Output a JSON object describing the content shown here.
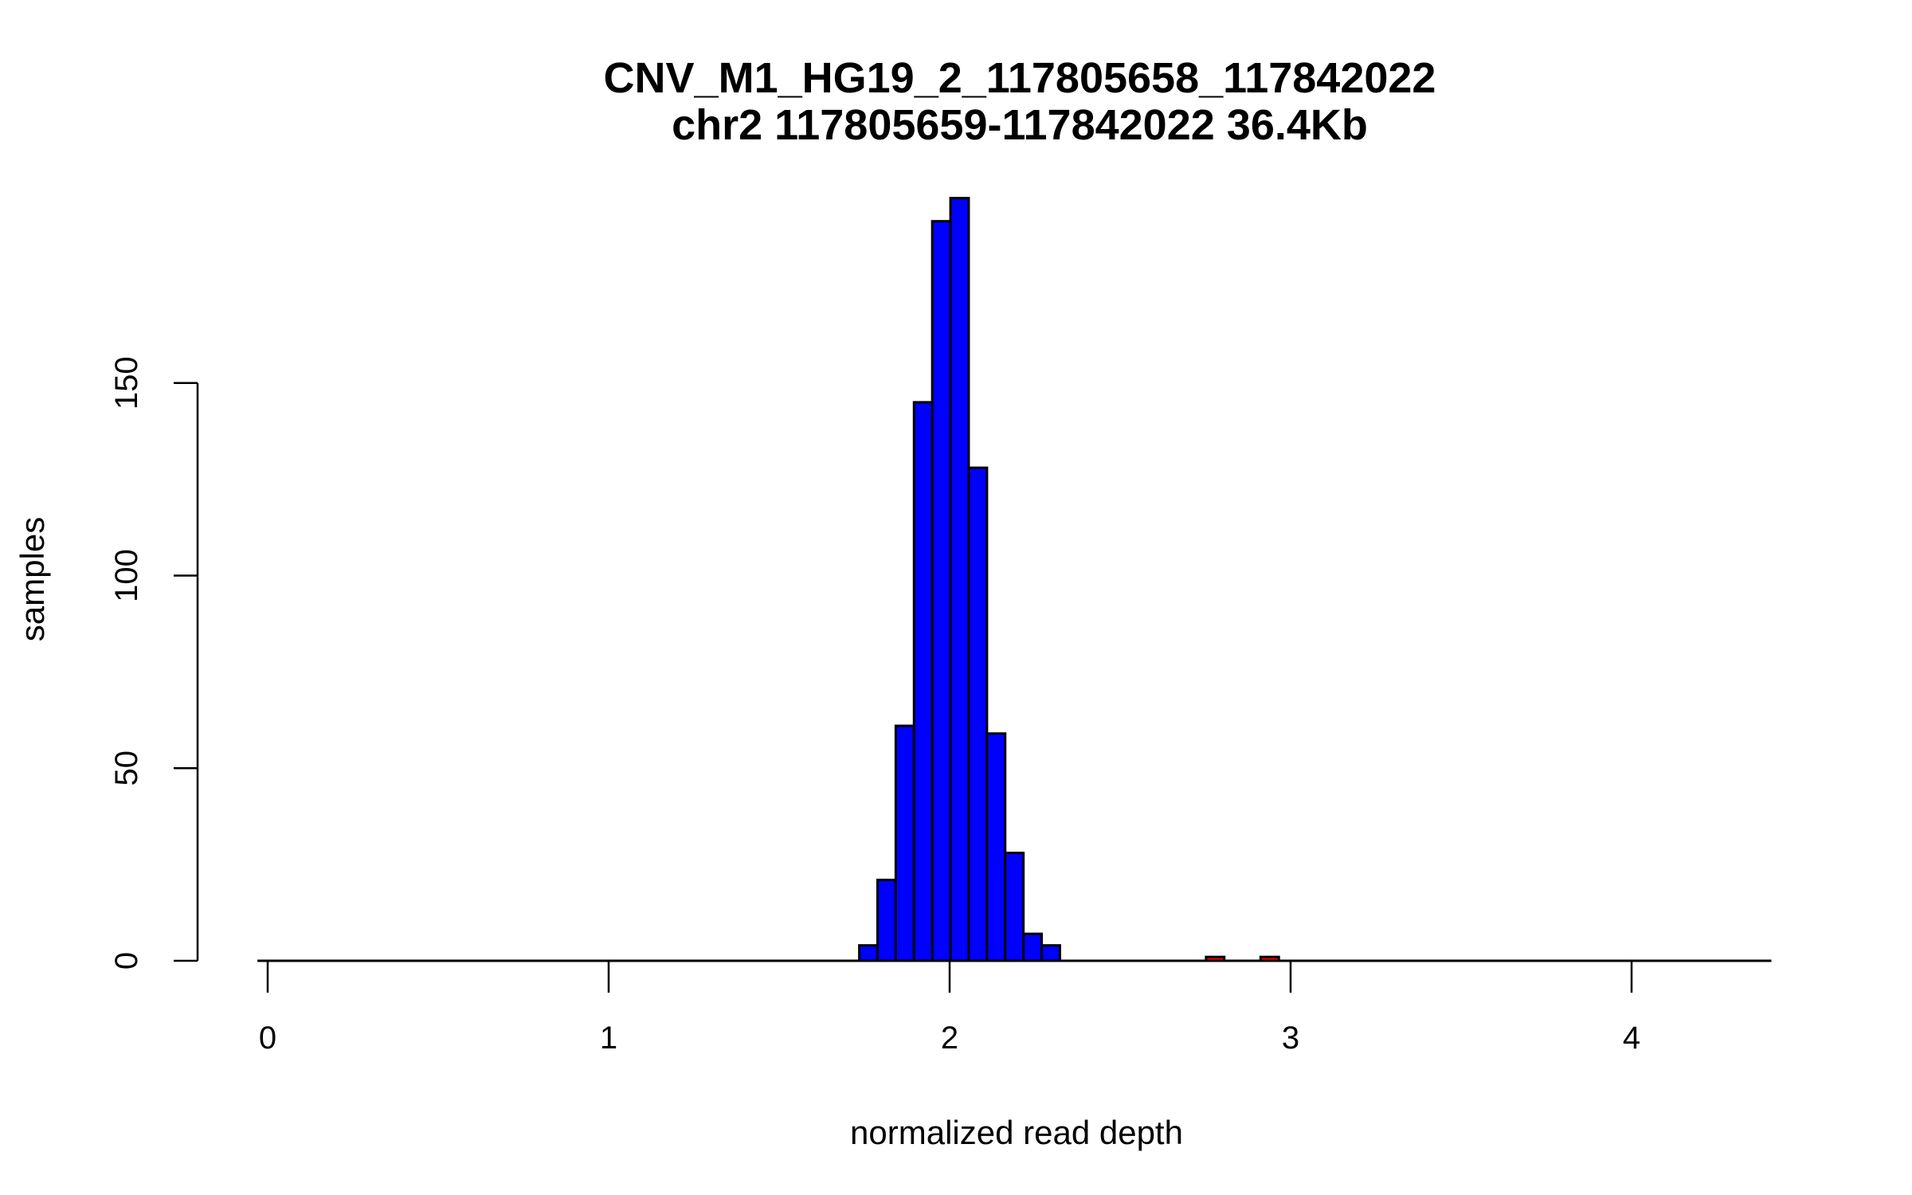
{
  "chart_data": {
    "type": "bar",
    "title": "CNV_M1_HG19_2_117805658_117842022",
    "subtitle": "chr2 117805659-117842022 36.4Kb",
    "xlabel": "normalized read depth",
    "ylabel": "samples",
    "xlim": [
      -0.03,
      4.41
    ],
    "ylim": [
      0,
      200
    ],
    "xticks": [
      "0",
      "1",
      "2",
      "3",
      "4"
    ],
    "xtick_values": [
      0,
      1,
      2,
      3,
      4
    ],
    "yticks": [
      "0",
      "50",
      "100",
      "150"
    ],
    "ytick_values": [
      0,
      50,
      100,
      150
    ],
    "grid": false,
    "bin_width": 0.0535,
    "series": [
      {
        "name": "main",
        "color": "#0000ff",
        "bin_starts": [
          1.735,
          1.7885,
          1.842,
          1.8955,
          1.949,
          2.0025,
          2.056,
          2.1095,
          2.163,
          2.2165,
          2.27
        ],
        "values": [
          4,
          21,
          61,
          145,
          192,
          198,
          128,
          59,
          28,
          7,
          4
        ]
      },
      {
        "name": "outliers",
        "color": "#ff0000",
        "bin_starts": [
          2.752,
          2.912
        ],
        "values": [
          1,
          1
        ]
      }
    ]
  }
}
